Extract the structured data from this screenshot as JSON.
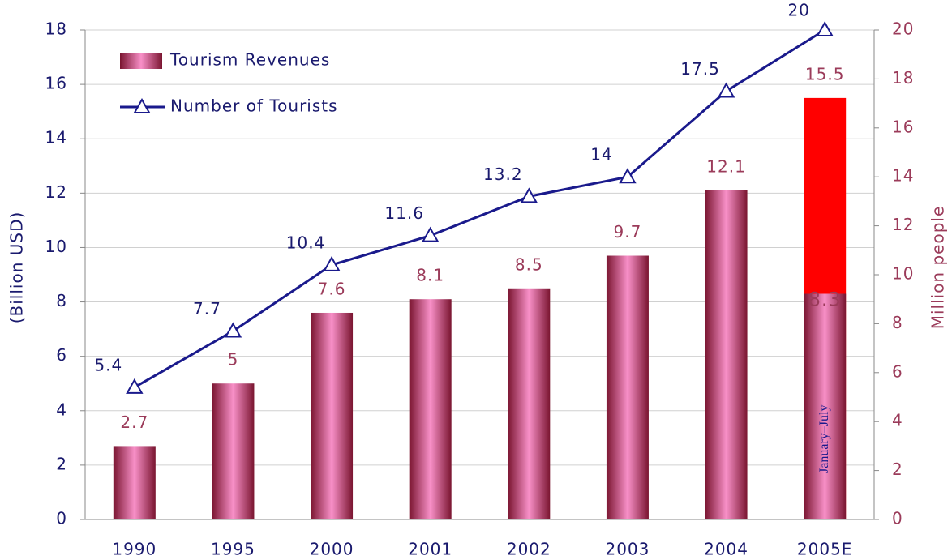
{
  "chart_data": {
    "type": "bar_line",
    "categories": [
      "1990",
      "1995",
      "2000",
      "2001",
      "2002",
      "2003",
      "2004",
      "2005E"
    ],
    "ylabel": "(Billion USD)",
    "y2label": "Million people",
    "ylim": [
      0,
      18
    ],
    "yticks": [
      0,
      2,
      4,
      6,
      8,
      10,
      12,
      14,
      16,
      18
    ],
    "y2lim": [
      0,
      20
    ],
    "y2ticks": [
      0,
      2,
      4,
      6,
      8,
      10,
      12,
      14,
      16,
      18,
      20
    ],
    "grid": true,
    "legend": "upper left",
    "series": [
      {
        "name": "Tourism Revenues",
        "type": "bar",
        "color": "#f27fb8",
        "colors": [
          "#f27fb8",
          "#f27fb8",
          "#f27fb8",
          "#f27fb8",
          "#f27fb8",
          "#f27fb8",
          "#f27fb8",
          "#ff0000"
        ],
        "values": [
          2.7,
          5.0,
          7.6,
          8.1,
          8.5,
          9.7,
          12.1,
          15.5
        ]
      },
      {
        "name": "Number of Tourists",
        "type": "line",
        "axis": "y2",
        "color": "#1a1a8c",
        "values": [
          5.4,
          7.7,
          10.4,
          11.6,
          13.2,
          14.0,
          17.5,
          20.0
        ]
      }
    ],
    "partial": {
      "label": "January–July",
      "values": [
        null,
        null,
        null,
        null,
        null,
        null,
        null,
        8.3
      ]
    }
  }
}
